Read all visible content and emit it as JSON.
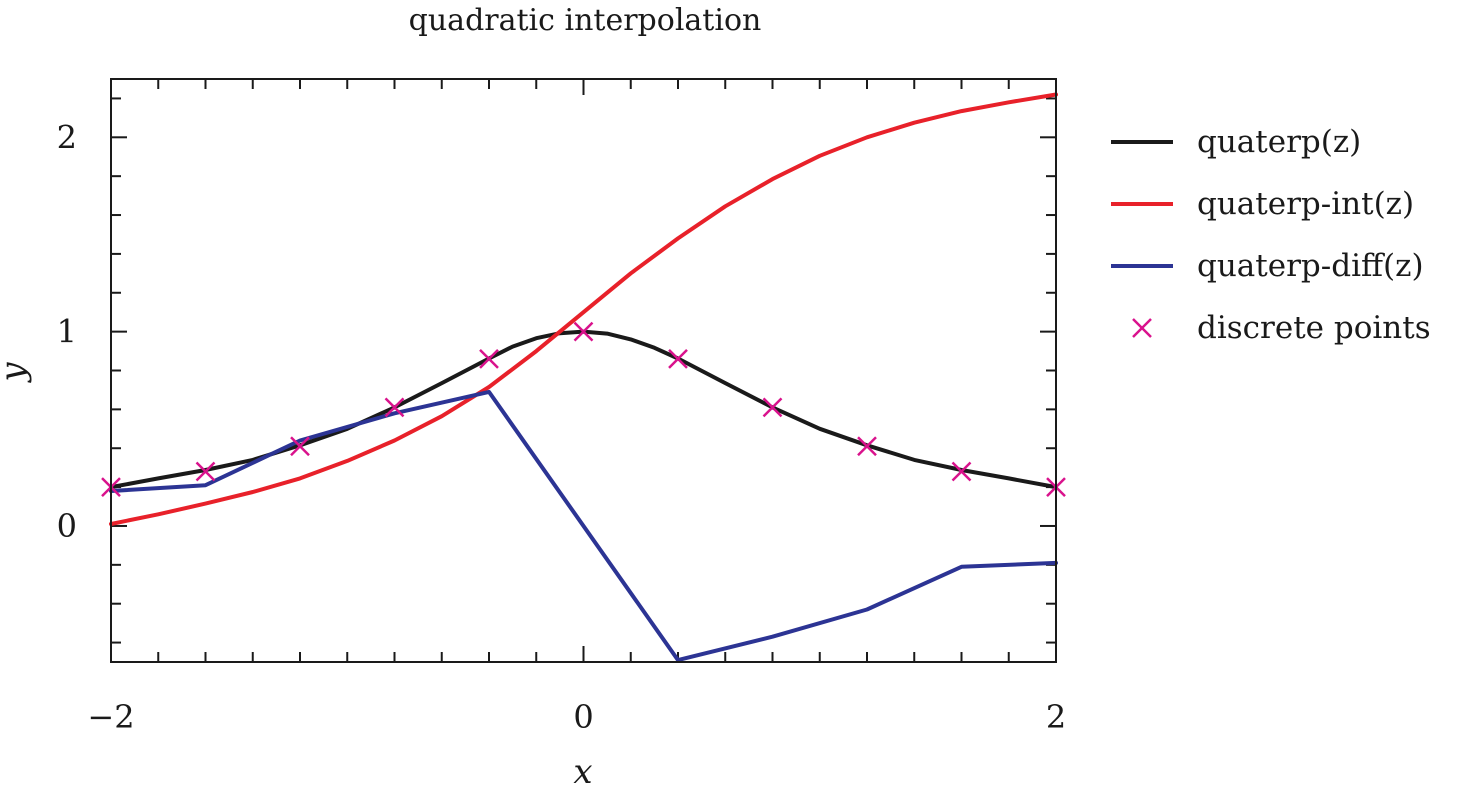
{
  "chart_data": {
    "type": "line",
    "title": "quadratic interpolation",
    "xlabel": "x",
    "ylabel": "y",
    "xlim": [
      -2,
      2
    ],
    "ylim": [
      -0.7,
      2.3
    ],
    "x_ticks": [
      -2,
      0,
      2
    ],
    "x_tick_labels": [
      "−2",
      "0",
      "2"
    ],
    "x_minor_step": 0.2,
    "y_ticks": [
      0,
      1,
      2
    ],
    "y_tick_labels": [
      "0",
      "1",
      "2"
    ],
    "y_minor_step": 0.2,
    "grid": false,
    "legend_position": "outside-right",
    "series": [
      {
        "name": "quaterp(z)",
        "color": "#1a1a1a",
        "style": "line",
        "x": [
          -2,
          -1.8,
          -1.6,
          -1.4,
          -1.2,
          -1,
          -0.8,
          -0.6,
          -0.4,
          -0.3,
          -0.2,
          -0.1,
          0,
          0.1,
          0.2,
          0.3,
          0.4,
          0.6,
          0.8,
          1,
          1.2,
          1.4,
          1.6,
          1.8,
          2
        ],
        "y": [
          0.2,
          0.245,
          0.288,
          0.34,
          0.415,
          0.5,
          0.61,
          0.735,
          0.862,
          0.923,
          0.966,
          0.992,
          1.0,
          0.99,
          0.96,
          0.917,
          0.862,
          0.735,
          0.61,
          0.5,
          0.415,
          0.34,
          0.288,
          0.245,
          0.2
        ]
      },
      {
        "name": "quaterp-int(z)",
        "color": "#e8212a",
        "style": "line",
        "x": [
          -2,
          -1.8,
          -1.6,
          -1.4,
          -1.2,
          -1,
          -0.8,
          -0.6,
          -0.4,
          -0.2,
          0,
          0.2,
          0.4,
          0.6,
          0.8,
          1,
          1.2,
          1.4,
          1.6,
          1.8,
          2
        ],
        "y": [
          0.01,
          0.06,
          0.115,
          0.175,
          0.245,
          0.335,
          0.44,
          0.565,
          0.715,
          0.9,
          1.1,
          1.3,
          1.48,
          1.645,
          1.785,
          1.905,
          2.0,
          2.075,
          2.135,
          2.18,
          2.22
        ]
      },
      {
        "name": "quaterp-diff(z)",
        "color": "#2c3494",
        "style": "line",
        "x": [
          -2,
          -1.6,
          -1.2,
          -0.8,
          -0.4,
          0.4,
          0.8,
          1.2,
          1.6,
          2
        ],
        "y": [
          0.18,
          0.21,
          0.44,
          0.58,
          0.69,
          -0.69,
          -0.57,
          -0.43,
          -0.21,
          -0.19
        ]
      },
      {
        "name": "discrete points",
        "color": "#d9128c",
        "style": "marker-x",
        "x": [
          -2,
          -1.6,
          -1.2,
          -0.8,
          -0.4,
          0,
          0.4,
          0.8,
          1.2,
          1.6,
          2
        ],
        "y": [
          0.2,
          0.28,
          0.41,
          0.61,
          0.86,
          1.0,
          0.86,
          0.61,
          0.41,
          0.28,
          0.2
        ]
      }
    ]
  }
}
